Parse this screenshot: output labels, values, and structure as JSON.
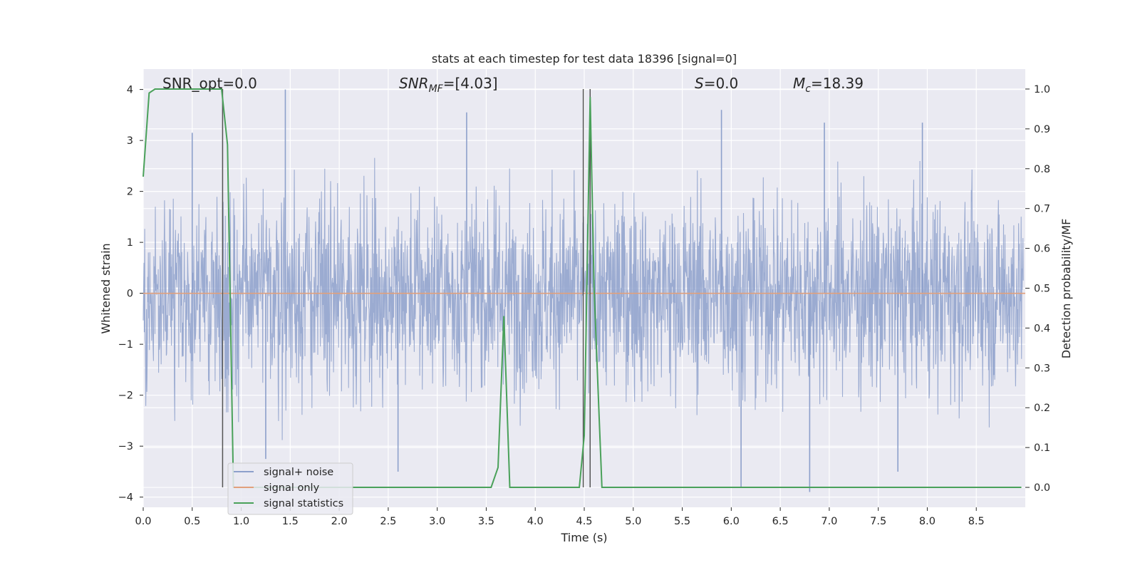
{
  "chart_data": {
    "type": "line",
    "title": "stats at each timestep for test data 18396 [signal=0]",
    "xlabel": "Time (s)",
    "ylabel_left": "Whitened strain",
    "ylabel_right": "Detection probability/MF",
    "xlim": [
      0.0,
      9.0
    ],
    "ylim_left": [
      -4.2,
      4.4
    ],
    "ylim_right": [
      -0.05,
      1.05
    ],
    "x_ticks": [
      "0.0",
      "0.5",
      "1.0",
      "1.5",
      "2.0",
      "2.5",
      "3.0",
      "3.5",
      "4.0",
      "4.5",
      "5.0",
      "5.5",
      "6.0",
      "6.5",
      "7.0",
      "7.5",
      "8.0",
      "8.5"
    ],
    "y_ticks_left": [
      "4",
      "3",
      "2",
      "1",
      "0",
      "−1",
      "−2",
      "−3",
      "−4"
    ],
    "y_ticks_right": [
      "1.0",
      "0.9",
      "0.8",
      "0.7",
      "0.6",
      "0.5",
      "0.4",
      "0.3",
      "0.2",
      "0.1",
      "0.0"
    ],
    "grid": true,
    "legend_position": "bottom-left",
    "annotations": {
      "snr_opt": "SNR_opt=0.0",
      "snr_mf_main": "SNR",
      "snr_mf_sub": "MF",
      "snr_mf_value": "=[4.03]",
      "s_symbol": "S",
      "s_value": "=0.0",
      "mc_symbol": "M",
      "mc_sub": "c",
      "mc_value": "=18.39"
    },
    "series": [
      {
        "name": "signal+ noise",
        "color": "#8da0cb",
        "description_kind": "whitened noisy strain, roughly Gaussian, amplitude within about ±4",
        "amplitude_range": [
          -3.9,
          4.0
        ]
      },
      {
        "name": "signal only",
        "color": "#e1a07c",
        "values_y": 0.0
      },
      {
        "name": "signal statistics",
        "color": "#4aa15a",
        "axis": "right",
        "x": [
          0.0,
          0.06,
          0.12,
          0.2,
          0.5,
          0.8,
          0.86,
          0.92,
          0.96,
          1.0,
          3.55,
          3.62,
          3.68,
          3.74,
          3.8,
          4.45,
          4.5,
          4.56,
          4.6,
          4.68,
          8.96
        ],
        "y": [
          0.78,
          0.99,
          1.0,
          1.0,
          1.0,
          1.0,
          0.86,
          0.0,
          0.0,
          0.0,
          0.0,
          0.05,
          0.43,
          0.0,
          0.0,
          0.0,
          0.13,
          0.98,
          0.5,
          0.0,
          0.0
        ]
      }
    ],
    "vertical_markers_s": [
      0.81,
      4.49,
      4.56
    ],
    "noise_envelope": {
      "peaks": [
        {
          "x": 0.5,
          "y": 3.15
        },
        {
          "x": 1.45,
          "y": 4.0
        },
        {
          "x": 3.3,
          "y": 3.55
        },
        {
          "x": 5.9,
          "y": 3.6
        },
        {
          "x": 6.95,
          "y": 3.35
        },
        {
          "x": 7.95,
          "y": 3.35
        }
      ],
      "troughs": [
        {
          "x": 1.25,
          "y": -3.25
        },
        {
          "x": 2.6,
          "y": -3.5
        },
        {
          "x": 6.1,
          "y": -3.8
        },
        {
          "x": 6.8,
          "y": -3.9
        },
        {
          "x": 7.7,
          "y": -3.5
        }
      ]
    }
  }
}
